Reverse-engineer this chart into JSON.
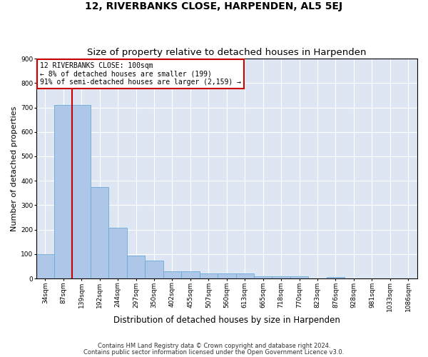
{
  "title": "12, RIVERBANKS CLOSE, HARPENDEN, AL5 5EJ",
  "subtitle": "Size of property relative to detached houses in Harpenden",
  "xlabel": "Distribution of detached houses by size in Harpenden",
  "ylabel": "Number of detached properties",
  "categories": [
    "34sqm",
    "87sqm",
    "139sqm",
    "192sqm",
    "244sqm",
    "297sqm",
    "350sqm",
    "402sqm",
    "455sqm",
    "507sqm",
    "560sqm",
    "613sqm",
    "665sqm",
    "718sqm",
    "770sqm",
    "823sqm",
    "876sqm",
    "928sqm",
    "981sqm",
    "1033sqm",
    "1086sqm"
  ],
  "values": [
    100,
    710,
    710,
    375,
    207,
    95,
    73,
    30,
    30,
    20,
    20,
    20,
    10,
    8,
    8,
    0,
    7,
    0,
    0,
    0,
    0
  ],
  "bar_color": "#aec6e8",
  "bar_edge_color": "#6aaad4",
  "vline_x": 1.5,
  "vline_color": "#cc0000",
  "annotation_text": "12 RIVERBANKS CLOSE: 100sqm\n← 8% of detached houses are smaller (199)\n91% of semi-detached houses are larger (2,159) →",
  "annotation_edge_color": "#cc0000",
  "ylim": [
    0,
    900
  ],
  "yticks": [
    0,
    100,
    200,
    300,
    400,
    500,
    600,
    700,
    800,
    900
  ],
  "bg_color": "#dde6f2",
  "footer_line1": "Contains HM Land Registry data © Crown copyright and database right 2024.",
  "footer_line2": "Contains public sector information licensed under the Open Government Licence v3.0.",
  "title_fontsize": 10,
  "subtitle_fontsize": 9.5,
  "xlabel_fontsize": 8.5,
  "ylabel_fontsize": 8,
  "annotation_fontsize": 7,
  "tick_fontsize": 6.5
}
